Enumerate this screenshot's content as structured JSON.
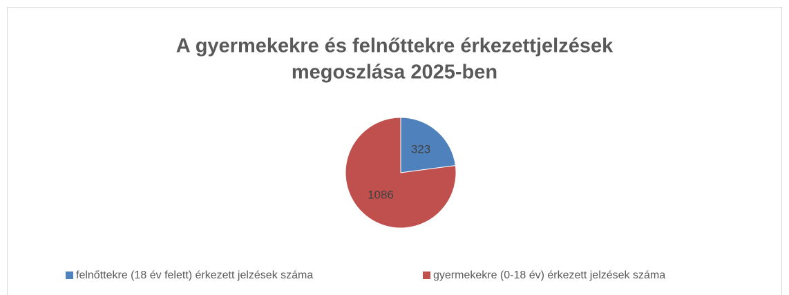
{
  "chart_data": {
    "type": "pie",
    "title": [
      "A gyermekekre és felnőttekre érkezettjelzések",
      "megoszlása 2025-ben"
    ],
    "categories": [
      "felnőttekre (18 év felett) érkezett jelzések száma",
      "gyermekekre (0-18 év) érkezett jelzések száma"
    ],
    "values": [
      323,
      1086
    ],
    "colors": [
      "#4f81bd",
      "#c0504d"
    ],
    "legend": "bottom"
  }
}
